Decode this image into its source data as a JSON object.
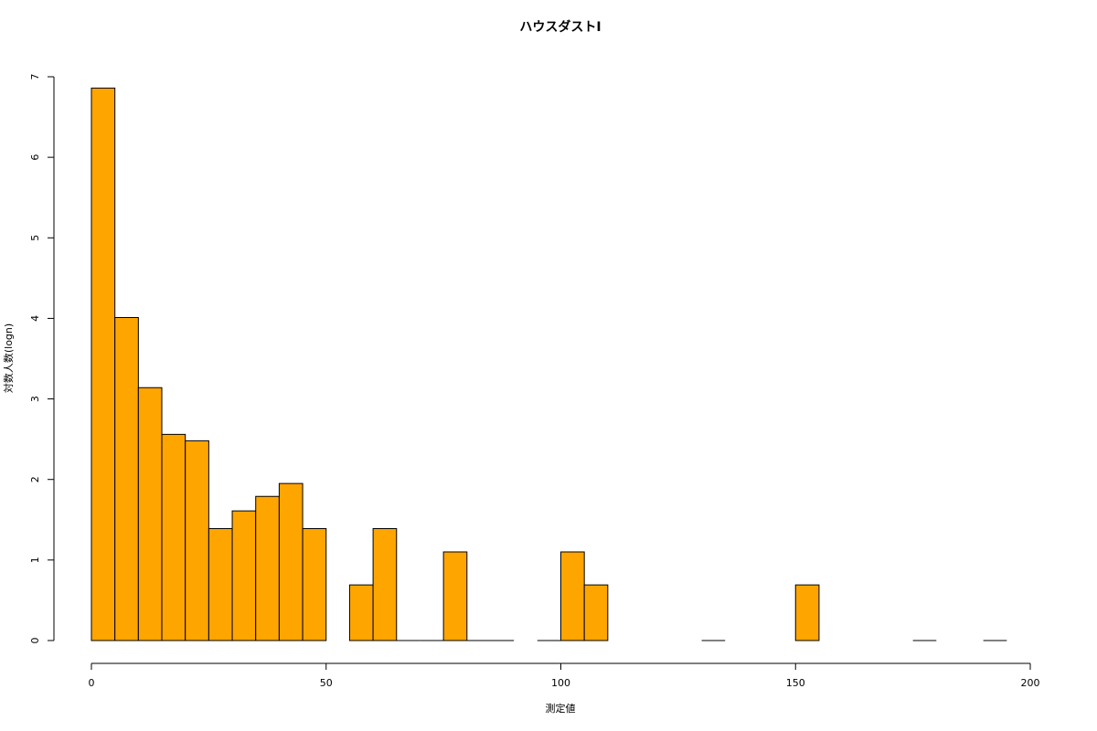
{
  "chart_data": {
    "type": "histogram",
    "title": "ハウスダストⅠ",
    "x_label": "測定値",
    "y_label": "対数人数(logn)",
    "bins": [
      0,
      5,
      10,
      15,
      20,
      25,
      30,
      35,
      40,
      45,
      50,
      55,
      60,
      65,
      70,
      75,
      80,
      85,
      90,
      95,
      100,
      105,
      110,
      115,
      120,
      125,
      130,
      135,
      140,
      145,
      150,
      155,
      160,
      165,
      170,
      175,
      180,
      185,
      190,
      195
    ],
    "values": [
      6.86,
      4.01,
      3.14,
      2.56,
      2.48,
      1.39,
      1.61,
      1.79,
      1.95,
      1.39,
      null,
      0.69,
      1.39,
      0,
      0,
      1.1,
      0,
      0,
      null,
      0,
      1.1,
      0.69,
      null,
      null,
      null,
      null,
      0,
      null,
      null,
      null,
      0.69,
      null,
      null,
      null,
      null,
      0,
      null,
      null,
      0
    ],
    "color": "#ffa500",
    "xlim": [
      0,
      200
    ],
    "xticks": [
      0,
      50,
      100,
      150,
      200
    ],
    "ylim": [
      0,
      7
    ],
    "yticks": [
      0,
      1,
      2,
      3,
      4,
      5,
      6,
      7
    ],
    "grid": false
  }
}
